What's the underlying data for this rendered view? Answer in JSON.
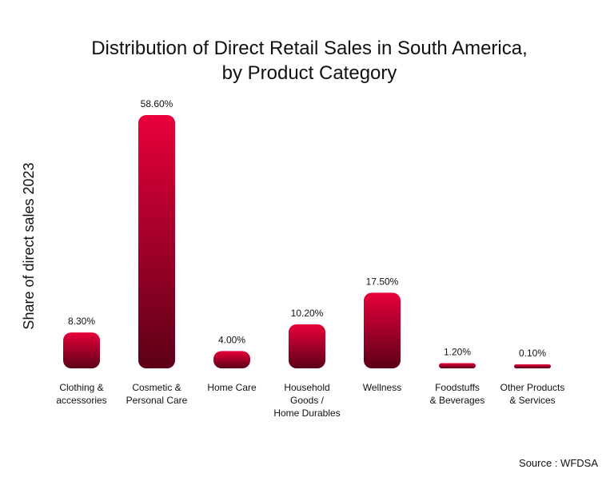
{
  "chart_data": {
    "type": "bar",
    "title": [
      "Distribution of Direct Retail Sales in South America,",
      "by Product Category"
    ],
    "ylabel": "Share of direct sales 2023",
    "xlabel": "",
    "categories": [
      [
        "Clothing &",
        "accessories"
      ],
      [
        "Cosmetic &",
        "Personal Care"
      ],
      [
        "Home Care"
      ],
      [
        "Household",
        "Goods /",
        "Home Durables"
      ],
      [
        "Wellness"
      ],
      [
        "Foodstuffs",
        "& Beverages"
      ],
      [
        "Other Products",
        "& Services"
      ]
    ],
    "values": [
      8.3,
      58.6,
      4.0,
      10.2,
      17.5,
      1.2,
      0.1
    ],
    "value_labels": [
      "8.30%",
      "58.60%",
      "4.00%",
      "10.20%",
      "17.50%",
      "1.20%",
      "0.10%"
    ],
    "ylim": [
      0,
      58.6
    ],
    "grid": false,
    "colors": {
      "bar_top": "#e8003a",
      "bar_bottom": "#5c0018",
      "text": "#111111"
    }
  },
  "source": "Source : WFDSA"
}
